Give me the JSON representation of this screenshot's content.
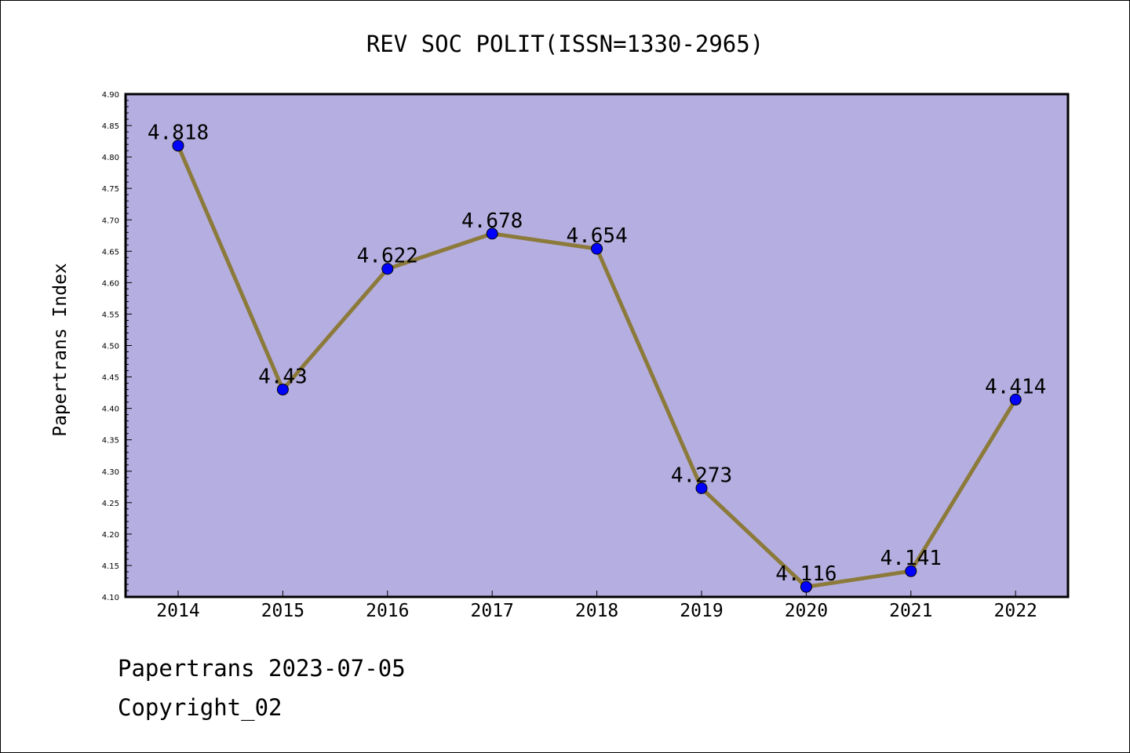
{
  "chart_data": {
    "type": "line",
    "title": "REV SOC POLIT(ISSN=1330-2965)",
    "xlabel": "",
    "ylabel": "Papertrans Index",
    "x": [
      "2014",
      "2015",
      "2016",
      "2017",
      "2018",
      "2019",
      "2020",
      "2021",
      "2022"
    ],
    "series": [
      {
        "values": [
          4.818,
          4.43,
          4.622,
          4.678,
          4.654,
          4.273,
          4.116,
          4.141,
          4.414
        ],
        "labels": [
          "4.818",
          "4.43",
          "4.622",
          "4.678",
          "4.654",
          "4.273",
          "4.116",
          "4.141",
          "4.414"
        ]
      }
    ],
    "ylim": [
      4.1,
      4.9
    ],
    "yticks": [
      "4.10",
      "4.15",
      "4.20",
      "4.25",
      "4.30",
      "4.35",
      "4.40",
      "4.45",
      "4.50",
      "4.55",
      "4.60",
      "4.65",
      "4.70",
      "4.75",
      "4.80",
      "4.85",
      "4.90"
    ],
    "grid": false,
    "legend": "none",
    "colors": {
      "plot_background": "#b5aee0",
      "line": "#8b7a3a",
      "marker": "#0000ff"
    }
  },
  "footer": {
    "line1": "Papertrans 2023-07-05",
    "line2": "Copyright_02"
  }
}
